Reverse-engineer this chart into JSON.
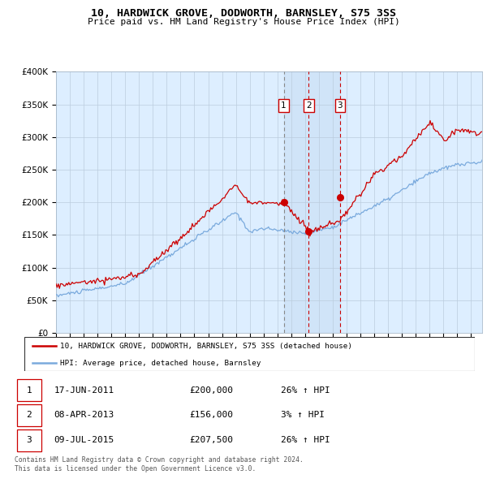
{
  "title": "10, HARDWICK GROVE, DODWORTH, BARNSLEY, S75 3SS",
  "subtitle": "Price paid vs. HM Land Registry's House Price Index (HPI)",
  "ylim": [
    0,
    400000
  ],
  "yticks": [
    0,
    50000,
    100000,
    150000,
    200000,
    250000,
    300000,
    350000,
    400000
  ],
  "xlim_start": 1995.0,
  "xlim_end": 2025.8,
  "hpi_color": "#7aaadd",
  "price_color": "#cc0000",
  "bg_color": "#ddeeff",
  "grid_color": "#bbccdd",
  "transactions": [
    {
      "label": "1",
      "date_year": 2011.46,
      "price": 200000,
      "vline_color": "#888888",
      "vline_dash": [
        4,
        3
      ]
    },
    {
      "label": "2",
      "date_year": 2013.27,
      "price": 156000,
      "vline_color": "#cc0000",
      "vline_dash": [
        4,
        3
      ]
    },
    {
      "label": "3",
      "date_year": 2015.52,
      "price": 207500,
      "vline_color": "#cc0000",
      "vline_dash": [
        4,
        3
      ]
    }
  ],
  "legend_house_label": "10, HARDWICK GROVE, DODWORTH, BARNSLEY, S75 3SS (detached house)",
  "legend_hpi_label": "HPI: Average price, detached house, Barnsley",
  "table_rows": [
    {
      "num": "1",
      "date": "17-JUN-2011",
      "price": "£200,000",
      "change": "26% ↑ HPI"
    },
    {
      "num": "2",
      "date": "08-APR-2013",
      "price": "£156,000",
      "change": "3% ↑ HPI"
    },
    {
      "num": "3",
      "date": "09-JUL-2015",
      "price": "£207,500",
      "change": "26% ↑ HPI"
    }
  ],
  "footer_line1": "Contains HM Land Registry data © Crown copyright and database right 2024.",
  "footer_line2": "This data is licensed under the Open Government Licence v3.0.",
  "shaded_region_start": 2011.46,
  "shaded_region_end": 2015.52
}
